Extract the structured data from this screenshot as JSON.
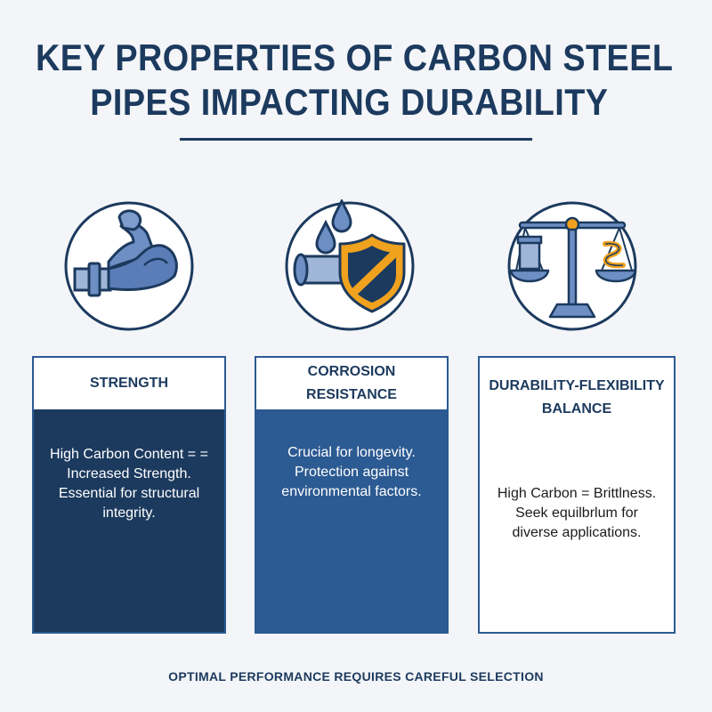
{
  "title": {
    "line1": "KEY PROPERTIES OF CARBON STEEL",
    "line2": "PIPES IMPACTING DURABILITY"
  },
  "icons": [
    {
      "name": "flexed-arm-pipe-icon"
    },
    {
      "name": "water-drops-shield-pipe-icon"
    },
    {
      "name": "balance-scale-icon"
    }
  ],
  "columns": [
    {
      "heading": "STRENGTH",
      "body": "High Carbon Content = = Increased Strength. Essential for structural integrity."
    },
    {
      "heading": "CORROSION RESISTANCE",
      "body": "Crucial for longevity. Protection against environmental factors."
    },
    {
      "heading": "DURABILITY-FLEXIBILITY BALANCE",
      "body": "High Carbon = Brittlness. Seek equilbrlum for diverse applications."
    }
  ],
  "footer": "OPTIMAL PERFORMANCE REQUIRES CAREFUL SELECTION",
  "colors": {
    "navy": "#1c3a5e",
    "blue": "#2c5a92",
    "steel": "#6d8fc4",
    "orange": "#f0a21e"
  }
}
